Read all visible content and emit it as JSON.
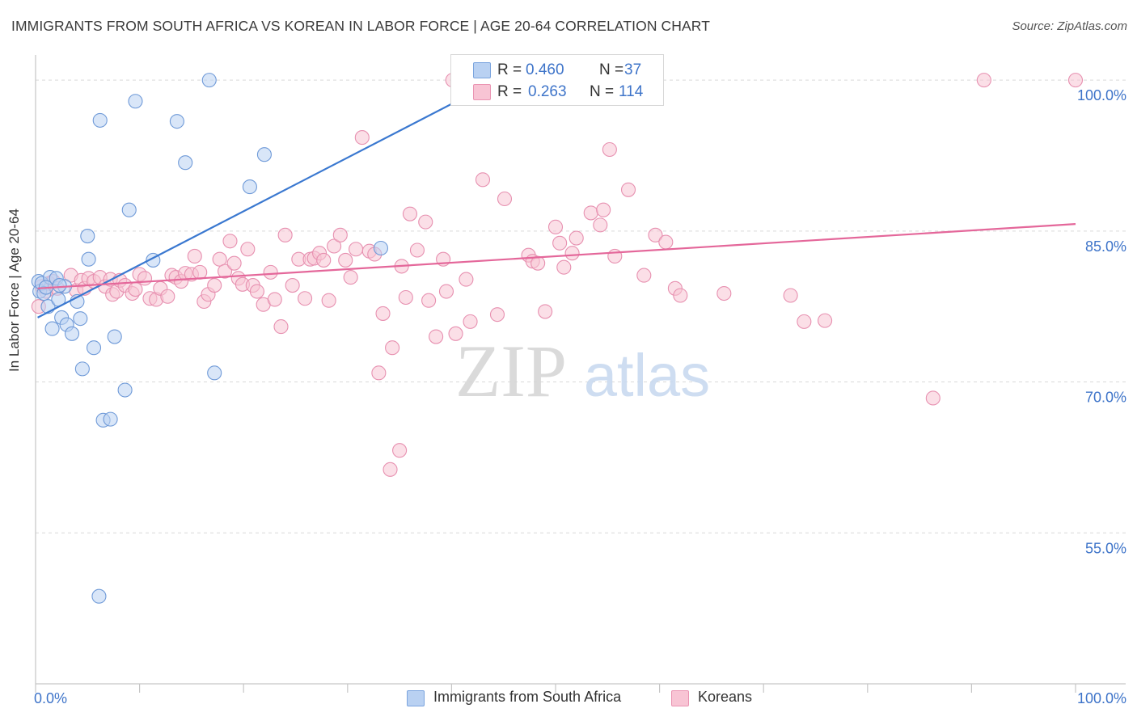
{
  "title": "IMMIGRANTS FROM SOUTH AFRICA VS KOREAN IN LABOR FORCE | AGE 20-64 CORRELATION CHART",
  "source": "Source: ZipAtlas.com",
  "watermark": {
    "zip": "ZIP",
    "atlas": "atlas"
  },
  "colors": {
    "blue": "#3a78d0",
    "blue_fill": "#b9d1f2",
    "pink": "#e4679a",
    "pink_fill": "#f8c4d4",
    "tick_label": "#3e74c9",
    "grid": "#d9d9d9"
  },
  "legend": {
    "rows": [
      {
        "r_label": "R = ",
        "r_value": "0.460",
        "n_label": "N = ",
        "n_value": "37"
      },
      {
        "r_label": "R = ",
        "r_value": "0.263",
        "n_label": "N = ",
        "n_value": "114"
      }
    ]
  },
  "bottom_legend": [
    "Immigrants from South Africa",
    "Koreans"
  ],
  "chart_data": {
    "type": "scatter",
    "title": "IMMIGRANTS FROM SOUTH AFRICA VS KOREAN IN LABOR FORCE | AGE 20-64 CORRELATION CHART",
    "xlabel": "",
    "ylabel": "In Labor Force | Age 20-64",
    "xlim": [
      0,
      100
    ],
    "ylim": [
      40,
      102.5
    ],
    "x_tick_labels": [
      "0.0%",
      "100.0%"
    ],
    "y_ticks": [
      55,
      70,
      85,
      100
    ],
    "y_tick_labels": [
      "55.0%",
      "70.0%",
      "85.0%",
      "100.0%"
    ],
    "grid": "horizontal dashed",
    "legend_position": "top-center",
    "series": [
      {
        "name": "Immigrants from South Africa",
        "r": 0.46,
        "n": 37,
        "trend": {
          "x": [
            0.2,
            45
          ],
          "y": [
            76.4,
            100.3
          ]
        },
        "points": [
          [
            0.3,
            80.0
          ],
          [
            0.4,
            79.0
          ],
          [
            0.6,
            79.8
          ],
          [
            0.8,
            78.8
          ],
          [
            1.2,
            77.5
          ],
          [
            1.4,
            80.4
          ],
          [
            1.6,
            75.3
          ],
          [
            2.0,
            80.3
          ],
          [
            2.2,
            78.2
          ],
          [
            2.5,
            76.4
          ],
          [
            2.8,
            79.5
          ],
          [
            3.0,
            75.7
          ],
          [
            3.5,
            74.8
          ],
          [
            4.0,
            78.0
          ],
          [
            4.3,
            76.3
          ],
          [
            4.5,
            71.3
          ],
          [
            5.0,
            84.5
          ],
          [
            5.6,
            73.4
          ],
          [
            6.2,
            96.0
          ],
          [
            6.5,
            66.2
          ],
          [
            7.2,
            66.3
          ],
          [
            7.6,
            74.5
          ],
          [
            8.6,
            69.2
          ],
          [
            9.0,
            87.1
          ],
          [
            9.6,
            97.9
          ],
          [
            11.3,
            82.1
          ],
          [
            13.6,
            95.9
          ],
          [
            14.4,
            91.8
          ],
          [
            16.7,
            100.0
          ],
          [
            17.2,
            70.9
          ],
          [
            20.6,
            89.4
          ],
          [
            22.0,
            92.6
          ],
          [
            33.2,
            83.3
          ],
          [
            6.1,
            48.7
          ],
          [
            1.0,
            79.4
          ],
          [
            2.3,
            79.6
          ],
          [
            5.1,
            82.2
          ]
        ]
      },
      {
        "name": "Koreans",
        "r": 0.263,
        "n": 114,
        "trend": {
          "x": [
            0.2,
            100
          ],
          "y": [
            79.3,
            85.7
          ]
        },
        "points": [
          [
            0.3,
            77.5
          ],
          [
            0.6,
            79.5
          ],
          [
            1.0,
            79.0
          ],
          [
            1.3,
            79.8
          ],
          [
            1.7,
            80.0
          ],
          [
            2.1,
            79.3
          ],
          [
            3.4,
            80.6
          ],
          [
            3.9,
            79.1
          ],
          [
            4.4,
            80.1
          ],
          [
            4.7,
            79.3
          ],
          [
            5.1,
            80.3
          ],
          [
            5.6,
            80.0
          ],
          [
            6.2,
            80.4
          ],
          [
            6.7,
            79.5
          ],
          [
            7.2,
            80.2
          ],
          [
            7.4,
            78.7
          ],
          [
            7.8,
            79.0
          ],
          [
            8.1,
            80.1
          ],
          [
            8.6,
            79.6
          ],
          [
            9.3,
            78.8
          ],
          [
            9.6,
            79.2
          ],
          [
            10.0,
            80.7
          ],
          [
            10.5,
            80.3
          ],
          [
            11.0,
            78.3
          ],
          [
            11.6,
            78.2
          ],
          [
            12.0,
            79.3
          ],
          [
            12.7,
            78.5
          ],
          [
            13.1,
            80.6
          ],
          [
            13.5,
            80.4
          ],
          [
            14.0,
            80.0
          ],
          [
            14.4,
            80.8
          ],
          [
            15.0,
            80.7
          ],
          [
            15.3,
            82.5
          ],
          [
            15.8,
            80.9
          ],
          [
            16.2,
            78.0
          ],
          [
            16.6,
            78.7
          ],
          [
            17.2,
            79.6
          ],
          [
            17.7,
            82.2
          ],
          [
            18.2,
            81.0
          ],
          [
            18.7,
            84.0
          ],
          [
            19.1,
            81.8
          ],
          [
            19.5,
            80.3
          ],
          [
            19.9,
            79.7
          ],
          [
            20.4,
            83.2
          ],
          [
            20.9,
            79.6
          ],
          [
            21.3,
            79.0
          ],
          [
            21.9,
            77.7
          ],
          [
            22.6,
            80.9
          ],
          [
            23.0,
            78.2
          ],
          [
            23.6,
            75.5
          ],
          [
            24.0,
            84.6
          ],
          [
            24.7,
            79.6
          ],
          [
            25.3,
            82.2
          ],
          [
            25.9,
            78.3
          ],
          [
            26.4,
            82.2
          ],
          [
            26.8,
            82.3
          ],
          [
            27.3,
            82.8
          ],
          [
            27.7,
            82.1
          ],
          [
            28.2,
            78.1
          ],
          [
            28.7,
            83.5
          ],
          [
            29.3,
            84.6
          ],
          [
            29.8,
            82.1
          ],
          [
            30.3,
            80.4
          ],
          [
            30.8,
            83.2
          ],
          [
            31.4,
            94.3
          ],
          [
            32.1,
            83.0
          ],
          [
            32.6,
            82.7
          ],
          [
            33.4,
            76.8
          ],
          [
            34.3,
            73.4
          ],
          [
            33.0,
            70.9
          ],
          [
            35.2,
            81.5
          ],
          [
            35.6,
            78.4
          ],
          [
            36.0,
            86.7
          ],
          [
            36.7,
            83.1
          ],
          [
            37.5,
            85.9
          ],
          [
            37.8,
            78.1
          ],
          [
            38.5,
            74.5
          ],
          [
            39.2,
            82.2
          ],
          [
            39.5,
            79.0
          ],
          [
            40.4,
            74.8
          ],
          [
            40.1,
            100.0
          ],
          [
            41.4,
            80.2
          ],
          [
            41.8,
            76.0
          ],
          [
            43.0,
            90.1
          ],
          [
            44.4,
            76.7
          ],
          [
            45.1,
            88.2
          ],
          [
            47.4,
            82.6
          ],
          [
            47.8,
            82.0
          ],
          [
            48.3,
            81.8
          ],
          [
            49.0,
            77.0
          ],
          [
            50.0,
            85.4
          ],
          [
            50.4,
            83.8
          ],
          [
            50.8,
            81.4
          ],
          [
            51.6,
            82.8
          ],
          [
            52.0,
            84.3
          ],
          [
            53.4,
            86.8
          ],
          [
            54.3,
            85.6
          ],
          [
            54.6,
            87.1
          ],
          [
            55.2,
            93.1
          ],
          [
            55.7,
            82.5
          ],
          [
            57.0,
            89.1
          ],
          [
            58.5,
            80.6
          ],
          [
            59.6,
            84.6
          ],
          [
            60.6,
            83.9
          ],
          [
            61.5,
            79.3
          ],
          [
            62.0,
            78.6
          ],
          [
            66.2,
            78.8
          ],
          [
            72.6,
            78.6
          ],
          [
            73.9,
            76.0
          ],
          [
            75.9,
            76.1
          ],
          [
            86.3,
            68.4
          ],
          [
            91.2,
            100.0
          ],
          [
            100.0,
            100.0
          ],
          [
            34.1,
            61.3
          ],
          [
            35.0,
            63.2
          ]
        ]
      }
    ]
  }
}
